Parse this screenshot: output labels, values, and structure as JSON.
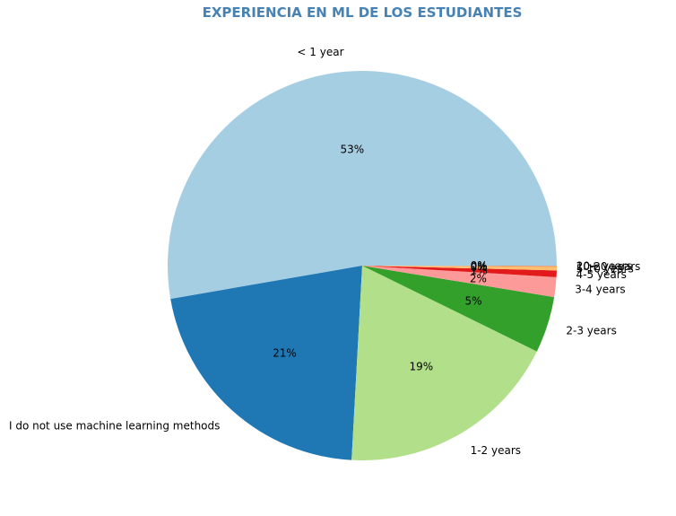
{
  "chart_data": {
    "type": "pie",
    "title": "EXPERIENCIA EN ML DE LOS ESTUDIANTES",
    "title_color": "#4682b4",
    "start_angle_deg": 0,
    "direction": "counterclockwise",
    "slices": [
      {
        "label": "< 1 year",
        "value": 53.0,
        "pct_label": "53%",
        "color": "#a6cee3"
      },
      {
        "label": "I do not use machine learning methods",
        "value": 21.5,
        "pct_label": "21%",
        "color": "#1f78b4"
      },
      {
        "label": "1-2 years",
        "value": 18.7,
        "pct_label": "19%",
        "color": "#b2df8a"
      },
      {
        "label": "2-3 years",
        "value": 4.7,
        "pct_label": "5%",
        "color": "#33a02c"
      },
      {
        "label": "3-4 years",
        "value": 1.65,
        "pct_label": "2%",
        "color": "#fb9a99"
      },
      {
        "label": "4-5 years",
        "value": 0.55,
        "pct_label": "1%",
        "color": "#e31a1c"
      },
      {
        "label": "5-10 years",
        "value": 0.3,
        "pct_label": "0%",
        "color": "#fdbf6f"
      },
      {
        "label": "10-20 years",
        "value": 0.05,
        "pct_label": "0%",
        "color": "#ff7f00"
      },
      {
        "label": "20+ years",
        "value": 0.05,
        "pct_label": "0%",
        "color": "#cab2d6"
      }
    ]
  }
}
